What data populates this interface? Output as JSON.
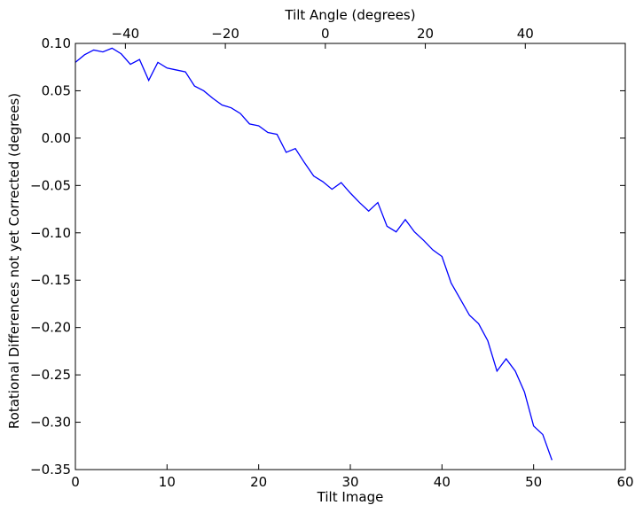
{
  "chart_data": {
    "type": "line",
    "xlabel": "Tilt Image",
    "ylabel": "Rotational Differences not yet Corrected (degrees)",
    "top_xlabel": "Tilt Angle (degrees)",
    "xlim": [
      0,
      60
    ],
    "ylim": [
      -0.35,
      0.1
    ],
    "top_xlim": [
      -50,
      60
    ],
    "grid": false,
    "x_ticks": [
      0,
      10,
      20,
      30,
      40,
      50,
      60
    ],
    "x_tick_labels": [
      "0",
      "10",
      "20",
      "30",
      "40",
      "50",
      "60"
    ],
    "y_ticks": [
      0.1,
      0.05,
      0.0,
      -0.05,
      -0.1,
      -0.15,
      -0.2,
      -0.25,
      -0.3,
      -0.35
    ],
    "y_tick_labels": [
      "0.10",
      "0.05",
      "0.00",
      "−0.05",
      "−0.10",
      "−0.15",
      "−0.20",
      "−0.25",
      "−0.30",
      "−0.35"
    ],
    "top_x_ticks": [
      -40,
      -20,
      0,
      20,
      40
    ],
    "top_x_tick_labels": [
      "−40",
      "−20",
      "0",
      "20",
      "40"
    ],
    "series": [
      {
        "color": "#0000ff",
        "x": [
          0,
          1,
          2,
          3,
          4,
          5,
          6,
          7,
          8,
          9,
          10,
          11,
          12,
          13,
          14,
          15,
          16,
          17,
          18,
          19,
          20,
          21,
          22,
          23,
          24,
          25,
          26,
          27,
          28,
          29,
          30,
          31,
          32,
          33,
          34,
          35,
          36,
          37,
          38,
          39,
          40,
          41,
          42,
          43,
          44,
          45,
          46,
          47,
          48,
          49,
          50,
          51,
          52
        ],
        "values": [
          0.08,
          0.088,
          0.093,
          0.091,
          0.095,
          0.089,
          0.078,
          0.083,
          0.061,
          0.08,
          0.074,
          0.072,
          0.07,
          0.055,
          0.05,
          0.042,
          0.035,
          0.032,
          0.026,
          0.015,
          0.013,
          0.006,
          0.004,
          -0.015,
          -0.011,
          -0.026,
          -0.04,
          -0.046,
          -0.054,
          -0.047,
          -0.058,
          -0.068,
          -0.077,
          -0.068,
          -0.093,
          -0.099,
          -0.086,
          -0.099,
          -0.108,
          -0.118,
          -0.125,
          -0.153,
          -0.17,
          -0.187,
          -0.196,
          -0.214,
          -0.246,
          -0.233,
          -0.246,
          -0.268,
          -0.304,
          -0.313,
          -0.34
        ]
      }
    ]
  }
}
